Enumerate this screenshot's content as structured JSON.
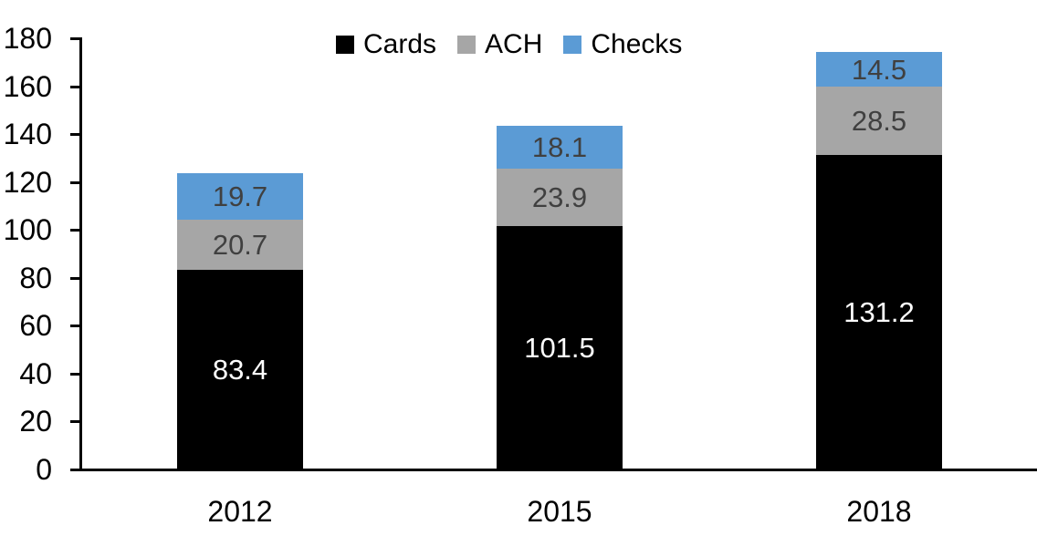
{
  "chart_data": {
    "type": "bar",
    "stacked": true,
    "title": "",
    "xlabel": "",
    "ylabel": "",
    "categories": [
      "2012",
      "2015",
      "2018"
    ],
    "series": [
      {
        "name": "Cards",
        "color": "#000000",
        "label_color": "#ffffff",
        "values": [
          83.4,
          101.5,
          131.2
        ]
      },
      {
        "name": "ACH",
        "color": "#a6a6a6",
        "label_color": "#404040",
        "values": [
          20.7,
          23.9,
          28.5
        ]
      },
      {
        "name": "Checks",
        "color": "#5b9bd5",
        "label_color": "#404040",
        "values": [
          19.7,
          18.1,
          14.5
        ]
      }
    ],
    "ylim": [
      0,
      180
    ],
    "ytick_step": 20,
    "yticks": [
      0,
      20,
      40,
      60,
      80,
      100,
      120,
      140,
      160,
      180
    ],
    "grid": false,
    "legend_position": "top-center",
    "axis_color": "#000000",
    "value_label_decimals": 1
  }
}
